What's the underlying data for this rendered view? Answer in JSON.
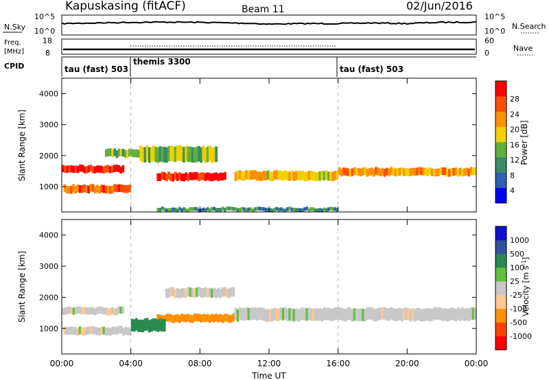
{
  "header": {
    "station": "Kapuskasing (fitACF)",
    "beam": "Beam 11",
    "date": "02/Jun/2016"
  },
  "noise_panel": {
    "left_label": "N.Sky",
    "left_ticks": [
      "10^5",
      "10^0"
    ],
    "right_ticks": [
      "10^5",
      "10^0"
    ],
    "right_label": "N.Search"
  },
  "freq_panel": {
    "left_label_1": "Freq.",
    "left_label_2": "[MHz]",
    "left_ticks": [
      "18",
      "8"
    ],
    "right_ticks": [
      "60",
      "0"
    ],
    "right_label": "Nave"
  },
  "cpid_panel": {
    "label": "CPID",
    "segments": [
      {
        "name": "tau (fast) 503",
        "start_hour": 0
      },
      {
        "name": "themis 3300",
        "start_hour": 4
      },
      {
        "name": "tau (fast) 503",
        "start_hour": 16
      }
    ]
  },
  "x_axis": {
    "label": "Time UT",
    "tick_labels": [
      "00:00",
      "04:00",
      "08:00",
      "12:00",
      "16:00",
      "20:00",
      "00:00"
    ]
  },
  "power_panel": {
    "ylabel": "Slant Range [km]",
    "yticks": [
      "4000",
      "3000",
      "2000",
      "1000"
    ],
    "colorbar_label": "Power [dB]",
    "colorbar_ticks": [
      "28",
      "24",
      "20",
      "16",
      "12",
      "8",
      "4"
    ]
  },
  "velocity_panel": {
    "ylabel": "Slant Range [km]",
    "yticks": [
      "4000",
      "3000",
      "2000",
      "1000"
    ],
    "colorbar_label": "Velocity [m s",
    "colorbar_label_sup": "-1",
    "colorbar_label_end": "]",
    "colorbar_ticks": [
      "1000",
      "500",
      "100",
      "25",
      "-25",
      "-100",
      "-500",
      "-1000"
    ]
  },
  "chart_data": [
    {
      "type": "line",
      "title": "N.Sky",
      "x_unit": "hours UT",
      "y_scale": "log",
      "ylim": [
        1,
        100000
      ],
      "x": [
        0,
        2,
        4,
        6,
        8,
        10,
        12,
        14,
        16,
        18,
        20,
        22,
        24
      ],
      "y": [
        3000,
        5000,
        8000,
        10000,
        8000,
        5000,
        2000,
        3000,
        3000,
        5000,
        3000,
        8000,
        10000
      ]
    },
    {
      "type": "line",
      "title": "Freq.",
      "ylabel": "[MHz]",
      "ylim": [
        8,
        18
      ],
      "x": [
        0,
        24
      ],
      "y": [
        10.5,
        10.5
      ]
    },
    {
      "type": "heatmap",
      "title": "Power [dB]",
      "xlabel": "Time UT",
      "ylabel": "Slant Range [km]",
      "xlim": [
        0,
        24
      ],
      "ylim": [
        180,
        4500
      ],
      "colorbar_range": [
        0,
        30
      ],
      "colorbar_colors": [
        "#0000ff",
        "#2f5fb0",
        "#3a8a6a",
        "#60b040",
        "#f0d000",
        "#ff9000",
        "#ff5000",
        "#ff0000"
      ],
      "bands": [
        {
          "time_start": 0,
          "time_end": 3.6,
          "range_low": 1450,
          "range_high": 1680,
          "power": 26
        },
        {
          "time_start": 0.1,
          "time_end": 4.0,
          "range_low": 800,
          "range_high": 1050,
          "power": 24
        },
        {
          "time_start": 2.5,
          "time_end": 4.6,
          "range_low": 1950,
          "range_high": 2200,
          "power": 12
        },
        {
          "time_start": 5.5,
          "time_end": 9.5,
          "range_low": 1200,
          "range_high": 1450,
          "power": 27
        },
        {
          "time_start": 4.5,
          "time_end": 9.0,
          "range_low": 1800,
          "range_high": 2300,
          "power": 14
        },
        {
          "time_start": 10.0,
          "time_end": 16.0,
          "range_low": 1200,
          "range_high": 1500,
          "power": 18
        },
        {
          "time_start": 16.0,
          "time_end": 24.0,
          "range_low": 1350,
          "range_high": 1600,
          "power": 20
        },
        {
          "time_start": 5.5,
          "time_end": 16.0,
          "range_low": 200,
          "range_high": 320,
          "power": 10
        }
      ]
    },
    {
      "type": "heatmap",
      "title": "Velocity [m s-1]",
      "xlabel": "Time UT",
      "ylabel": "Slant Range [km]",
      "xlim": [
        0,
        24
      ],
      "ylim": [
        180,
        4500
      ],
      "colorbar_levels": [
        -1000,
        -500,
        -100,
        -25,
        25,
        100,
        500,
        1000
      ],
      "colorbar_colors": [
        "#ff0000",
        "#ff4000",
        "#ff9000",
        "#ffc890",
        "#c8c8c8",
        "#60c040",
        "#2a8a50",
        "#3050a0",
        "#1010d0"
      ],
      "bands": [
        {
          "time_start": 0,
          "time_end": 3.6,
          "range_low": 1450,
          "range_high": 1680,
          "velocity": 0
        },
        {
          "time_start": 0.1,
          "time_end": 4.0,
          "range_low": 800,
          "range_high": 1050,
          "velocity": 0
        },
        {
          "time_start": 5.5,
          "time_end": 10.0,
          "range_low": 1200,
          "range_high": 1450,
          "velocity": -300
        },
        {
          "time_start": 4.0,
          "time_end": 6.0,
          "range_low": 900,
          "range_high": 1300,
          "velocity": 150
        },
        {
          "time_start": 10.0,
          "time_end": 24.0,
          "range_low": 1250,
          "range_high": 1650,
          "velocity": 0
        },
        {
          "time_start": 6.0,
          "time_end": 10.0,
          "range_low": 2000,
          "range_high": 2300,
          "velocity": 0
        }
      ]
    }
  ]
}
